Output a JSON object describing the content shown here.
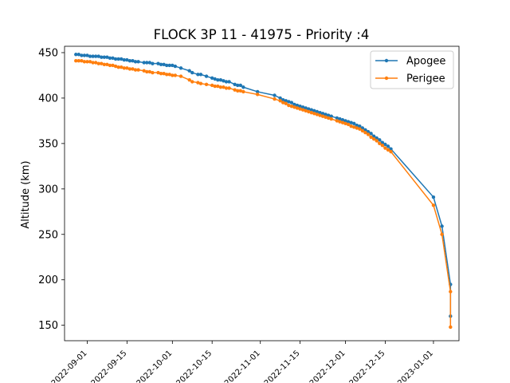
{
  "chart_data": {
    "type": "line",
    "title": "FLOCK 3P 11 - 41975 - Priority :4",
    "xlabel": "",
    "ylabel": "Altitude (km)",
    "x_type": "date",
    "xlim": [
      "2022-08-24",
      "2023-01-10"
    ],
    "ylim": [
      133,
      457
    ],
    "x_ticks": [
      "2022-09-01",
      "2022-09-15",
      "2022-10-01",
      "2022-10-15",
      "2022-11-01",
      "2022-11-15",
      "2022-12-01",
      "2022-12-15",
      "2023-01-01"
    ],
    "y_ticks": [
      150,
      200,
      250,
      300,
      350,
      400,
      450
    ],
    "grid": false,
    "legend_position": "top-right",
    "series": [
      {
        "name": "Apogee",
        "color": "#1f77b4",
        "x": [
          "2022-08-28",
          "2022-08-29",
          "2022-08-30",
          "2022-08-31",
          "2022-09-01",
          "2022-09-02",
          "2022-09-03",
          "2022-09-04",
          "2022-09-05",
          "2022-09-06",
          "2022-09-07",
          "2022-09-08",
          "2022-09-09",
          "2022-09-10",
          "2022-09-11",
          "2022-09-12",
          "2022-09-13",
          "2022-09-14",
          "2022-09-15",
          "2022-09-16",
          "2022-09-17",
          "2022-09-18",
          "2022-09-19",
          "2022-09-21",
          "2022-09-22",
          "2022-09-23",
          "2022-09-24",
          "2022-09-26",
          "2022-09-27",
          "2022-09-28",
          "2022-09-29",
          "2022-09-30",
          "2022-10-01",
          "2022-10-02",
          "2022-10-04",
          "2022-10-07",
          "2022-10-08",
          "2022-10-10",
          "2022-10-11",
          "2022-10-13",
          "2022-10-15",
          "2022-10-16",
          "2022-10-17",
          "2022-10-18",
          "2022-10-19",
          "2022-10-20",
          "2022-10-21",
          "2022-10-23",
          "2022-10-24",
          "2022-10-25",
          "2022-10-26",
          "2022-10-31",
          "2022-11-06",
          "2022-11-08",
          "2022-11-09",
          "2022-11-10",
          "2022-11-11",
          "2022-11-12",
          "2022-11-13",
          "2022-11-14",
          "2022-11-15",
          "2022-11-16",
          "2022-11-17",
          "2022-11-18",
          "2022-11-19",
          "2022-11-20",
          "2022-11-21",
          "2022-11-22",
          "2022-11-23",
          "2022-11-24",
          "2022-11-25",
          "2022-11-26",
          "2022-11-28",
          "2022-11-29",
          "2022-11-30",
          "2022-12-01",
          "2022-12-02",
          "2022-12-03",
          "2022-12-04",
          "2022-12-05",
          "2022-12-06",
          "2022-12-07",
          "2022-12-08",
          "2022-12-09",
          "2022-12-10",
          "2022-12-11",
          "2022-12-12",
          "2022-12-13",
          "2022-12-14",
          "2022-12-15",
          "2022-12-16",
          "2022-12-17",
          "2023-01-01",
          "2023-01-04",
          "2023-01-07",
          "2023-01-07"
        ],
        "y": [
          448,
          448,
          447,
          447,
          447,
          446,
          446,
          446,
          446,
          445,
          445,
          445,
          444,
          444,
          443,
          443,
          443,
          442,
          442,
          441,
          441,
          440,
          440,
          439,
          439,
          439,
          438,
          438,
          437,
          437,
          436,
          436,
          436,
          435,
          433,
          430,
          428,
          426,
          426,
          424,
          422,
          421,
          420,
          420,
          419,
          418,
          418,
          415,
          414,
          414,
          412,
          407,
          403,
          400,
          398,
          397,
          396,
          395,
          393,
          392,
          391,
          390,
          389,
          388,
          387,
          386,
          385,
          384,
          383,
          382,
          381,
          380,
          378,
          377,
          376,
          375,
          374,
          373,
          372,
          370,
          369,
          367,
          365,
          363,
          361,
          358,
          356,
          354,
          351,
          349,
          347,
          344,
          291,
          259,
          195,
          160
        ]
      },
      {
        "name": "Perigee",
        "color": "#ff7f0e",
        "x": [
          "2022-08-28",
          "2022-08-29",
          "2022-08-30",
          "2022-08-31",
          "2022-09-01",
          "2022-09-02",
          "2022-09-03",
          "2022-09-04",
          "2022-09-05",
          "2022-09-06",
          "2022-09-07",
          "2022-09-08",
          "2022-09-09",
          "2022-09-10",
          "2022-09-11",
          "2022-09-12",
          "2022-09-13",
          "2022-09-14",
          "2022-09-15",
          "2022-09-16",
          "2022-09-17",
          "2022-09-18",
          "2022-09-19",
          "2022-09-21",
          "2022-09-22",
          "2022-09-23",
          "2022-09-24",
          "2022-09-26",
          "2022-09-27",
          "2022-09-28",
          "2022-09-29",
          "2022-09-30",
          "2022-10-01",
          "2022-10-02",
          "2022-10-04",
          "2022-10-07",
          "2022-10-08",
          "2022-10-10",
          "2022-10-11",
          "2022-10-13",
          "2022-10-15",
          "2022-10-16",
          "2022-10-17",
          "2022-10-18",
          "2022-10-19",
          "2022-10-20",
          "2022-10-21",
          "2022-10-23",
          "2022-10-24",
          "2022-10-25",
          "2022-10-26",
          "2022-10-31",
          "2022-11-06",
          "2022-11-08",
          "2022-11-09",
          "2022-11-10",
          "2022-11-11",
          "2022-11-12",
          "2022-11-13",
          "2022-11-14",
          "2022-11-15",
          "2022-11-16",
          "2022-11-17",
          "2022-11-18",
          "2022-11-19",
          "2022-11-20",
          "2022-11-21",
          "2022-11-22",
          "2022-11-23",
          "2022-11-24",
          "2022-11-25",
          "2022-11-26",
          "2022-11-28",
          "2022-11-29",
          "2022-11-30",
          "2022-12-01",
          "2022-12-02",
          "2022-12-03",
          "2022-12-04",
          "2022-12-05",
          "2022-12-06",
          "2022-12-07",
          "2022-12-08",
          "2022-12-09",
          "2022-12-10",
          "2022-12-11",
          "2022-12-12",
          "2022-12-13",
          "2022-12-14",
          "2022-12-15",
          "2022-12-16",
          "2022-12-17",
          "2023-01-01",
          "2023-01-04",
          "2023-01-07",
          "2023-01-07"
        ],
        "y": [
          441,
          441,
          441,
          440,
          440,
          440,
          439,
          439,
          438,
          438,
          437,
          437,
          436,
          436,
          435,
          434,
          434,
          433,
          433,
          432,
          432,
          431,
          431,
          430,
          429,
          429,
          428,
          428,
          427,
          427,
          426,
          426,
          425,
          425,
          424,
          420,
          418,
          417,
          416,
          415,
          414,
          413,
          413,
          412,
          412,
          411,
          411,
          409,
          408,
          408,
          407,
          404,
          399,
          397,
          395,
          394,
          392,
          391,
          390,
          389,
          388,
          387,
          386,
          385,
          384,
          383,
          382,
          381,
          380,
          379,
          378,
          377,
          375,
          374,
          373,
          372,
          371,
          369,
          368,
          367,
          366,
          364,
          362,
          360,
          357,
          355,
          353,
          350,
          348,
          345,
          343,
          341,
          282,
          250,
          187,
          148
        ]
      }
    ]
  }
}
